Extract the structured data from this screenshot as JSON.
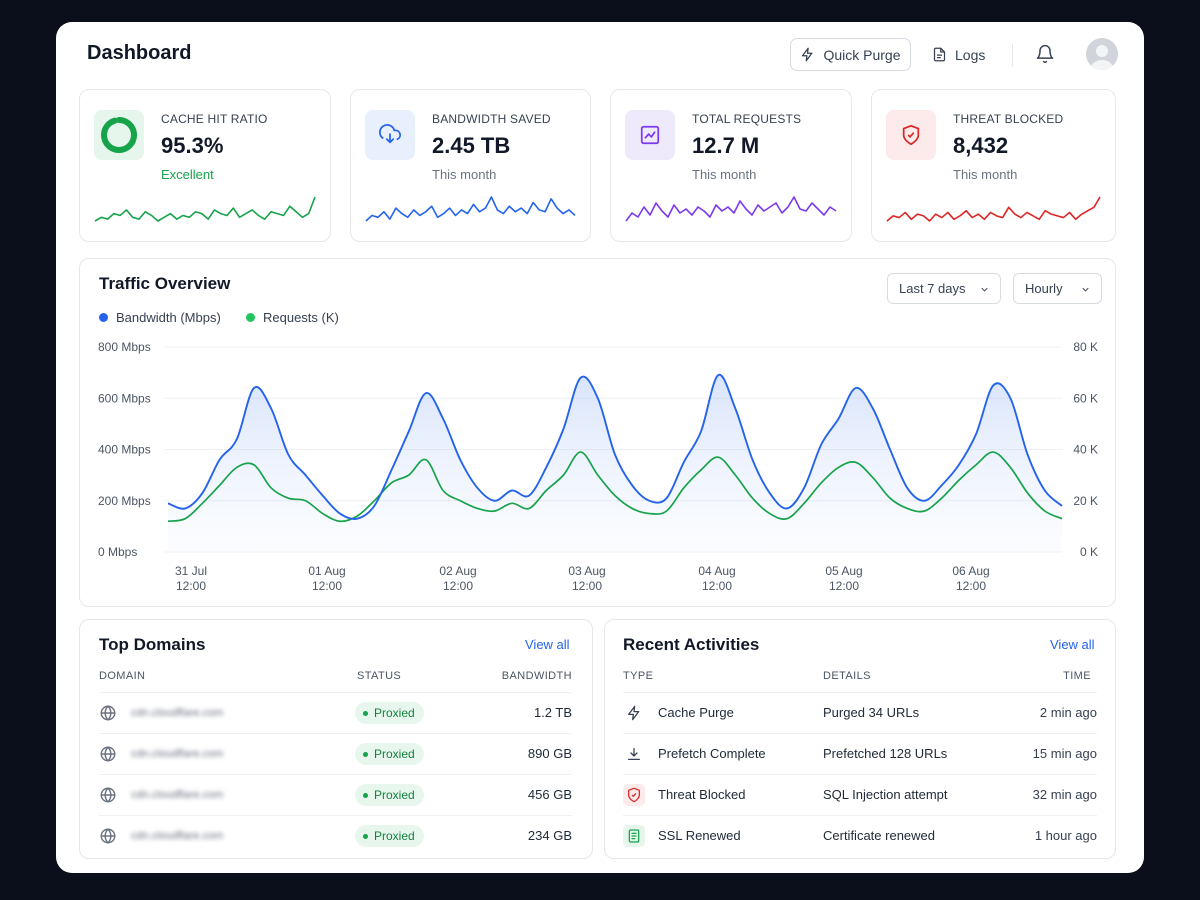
{
  "header": {
    "title": "Dashboard",
    "quick_purge_label": "Quick Purge",
    "logs_label": "Logs"
  },
  "stats": [
    {
      "label": "CACHE HIT RATIO",
      "value": "95.3%",
      "sub": "Excellent",
      "color": "#16a34a",
      "icon": "donut-icon",
      "ratio": 0.953,
      "spark": [
        18,
        20,
        19,
        22,
        21,
        24,
        20,
        19,
        23,
        21,
        18,
        20,
        22,
        19,
        21,
        20,
        23,
        22,
        19,
        24,
        22,
        21,
        25,
        20,
        22,
        24,
        21,
        19,
        23,
        22,
        21,
        26,
        23,
        20,
        22,
        31
      ]
    },
    {
      "label": "BANDWIDTH SAVED",
      "value": "2.45 TB",
      "sub": "This month",
      "color": "#2563eb",
      "icon": "cloud-download-icon",
      "spark": [
        20,
        23,
        22,
        25,
        21,
        27,
        24,
        22,
        26,
        23,
        25,
        28,
        22,
        24,
        27,
        23,
        26,
        24,
        29,
        25,
        27,
        33,
        26,
        24,
        28,
        25,
        27,
        24,
        30,
        26,
        25,
        32,
        27,
        24,
        26,
        23
      ]
    },
    {
      "label": "TOTAL REQUESTS",
      "value": "12.7 M",
      "sub": "This month",
      "color": "#7c3aed",
      "icon": "chart-icon",
      "spark": [
        20,
        24,
        22,
        27,
        23,
        29,
        25,
        22,
        28,
        24,
        26,
        23,
        27,
        25,
        22,
        28,
        25,
        27,
        24,
        30,
        26,
        23,
        28,
        25,
        27,
        29,
        24,
        27,
        32,
        26,
        25,
        29,
        26,
        23,
        27,
        25
      ]
    },
    {
      "label": "THREAT BLOCKED",
      "value": "8,432",
      "sub": "This month",
      "color": "#dc2626",
      "icon": "shield-icon",
      "spark": [
        19,
        22,
        21,
        24,
        20,
        23,
        22,
        19,
        23,
        21,
        24,
        20,
        22,
        25,
        21,
        23,
        20,
        24,
        22,
        21,
        27,
        23,
        21,
        24,
        22,
        20,
        25,
        23,
        22,
        21,
        24,
        20,
        23,
        25,
        27,
        33
      ]
    }
  ],
  "traffic": {
    "title": "Traffic Overview",
    "range_label": "Last 7 days",
    "interval_label": "Hourly",
    "legend": [
      "Bandwidth (Mbps)",
      "Requests (K)"
    ]
  },
  "chart_data": {
    "type": "line",
    "y_left_ticks": [
      "800 Mbps",
      "600 Mbps",
      "400 Mbps",
      "200 Mbps",
      "0 Mbps"
    ],
    "y_right_ticks": [
      "80 K",
      "60 K",
      "40 K",
      "20 K",
      "0 K"
    ],
    "ylim_left": [
      0,
      800
    ],
    "ylim_right": [
      0,
      80
    ],
    "x_ticks": [
      {
        "date": "31 Jul",
        "time": "12:00"
      },
      {
        "date": "01 Aug",
        "time": "12:00"
      },
      {
        "date": "02 Aug",
        "time": "12:00"
      },
      {
        "date": "03 Aug",
        "time": "12:00"
      },
      {
        "date": "04 Aug",
        "time": "12:00"
      },
      {
        "date": "05 Aug",
        "time": "12:00"
      },
      {
        "date": "06 Aug",
        "time": "12:00"
      }
    ],
    "series": [
      {
        "name": "Bandwidth (Mbps)",
        "color": "#2563eb",
        "axis": "left",
        "values": [
          190,
          170,
          230,
          360,
          440,
          640,
          560,
          380,
          300,
          220,
          150,
          130,
          180,
          320,
          470,
          620,
          520,
          360,
          250,
          200,
          240,
          220,
          330,
          480,
          680,
          600,
          380,
          260,
          200,
          210,
          350,
          470,
          690,
          560,
          360,
          230,
          170,
          250,
          420,
          520,
          640,
          560,
          400,
          250,
          200,
          260,
          340,
          460,
          650,
          600,
          380,
          240,
          180
        ]
      },
      {
        "name": "Requests (K)",
        "color": "#16a34a",
        "axis": "right",
        "values": [
          12,
          13,
          19,
          26,
          33,
          34,
          25,
          21,
          20,
          15,
          12,
          14,
          20,
          27,
          30,
          36,
          24,
          20,
          17,
          16,
          19,
          17,
          24,
          30,
          39,
          30,
          22,
          17,
          15,
          16,
          25,
          32,
          37,
          30,
          21,
          15,
          13,
          19,
          27,
          33,
          35,
          29,
          21,
          17,
          16,
          21,
          28,
          34,
          39,
          33,
          23,
          16,
          13
        ]
      }
    ]
  },
  "top_domains": {
    "title": "Top Domains",
    "view_all": "View all",
    "columns": [
      "DOMAIN",
      "STATUS",
      "BANDWIDTH"
    ],
    "rows": [
      {
        "domain": "cdn.cloudflare.com",
        "status": "Proxied",
        "bandwidth": "1.2 TB"
      },
      {
        "domain": "cdn.cloudflare.com",
        "status": "Proxied",
        "bandwidth": "890 GB"
      },
      {
        "domain": "cdn.cloudflare.com",
        "status": "Proxied",
        "bandwidth": "456 GB"
      },
      {
        "domain": "cdn.cloudflare.com",
        "status": "Proxied",
        "bandwidth": "234 GB"
      }
    ]
  },
  "activities": {
    "title": "Recent Activities",
    "view_all": "View all",
    "columns": [
      "TYPE",
      "DETAILS",
      "TIME"
    ],
    "rows": [
      {
        "type": "Cache Purge",
        "details": "Purged 34 URLs",
        "time": "2 min ago",
        "icon": "bolt-icon",
        "color": "#374151"
      },
      {
        "type": "Prefetch Complete",
        "details": "Prefetched 128 URLs",
        "time": "15 min ago",
        "icon": "download-icon",
        "color": "#374151"
      },
      {
        "type": "Threat Blocked",
        "details": "SQL Injection attempt",
        "time": "32 min ago",
        "icon": "shield-icon",
        "color": "#dc2626"
      },
      {
        "type": "SSL Renewed",
        "details": "Certificate renewed",
        "time": "1 hour ago",
        "icon": "certificate-icon",
        "color": "#16a34a"
      }
    ]
  }
}
